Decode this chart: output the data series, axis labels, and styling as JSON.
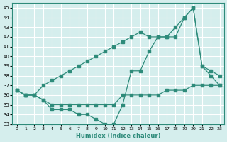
{
  "line1_x": [
    0,
    1,
    2,
    3,
    4,
    5,
    6,
    7,
    8,
    9,
    10,
    11,
    12,
    13,
    14,
    15,
    16,
    17,
    18,
    19,
    20,
    21,
    22,
    23
  ],
  "line1_y": [
    36.5,
    36,
    36,
    37,
    37.5,
    38,
    38.5,
    39,
    39.5,
    40,
    40.5,
    41,
    41.5,
    42,
    42.5,
    42,
    42,
    42,
    43,
    44,
    45,
    39,
    38.5,
    38
  ],
  "line2_x": [
    0,
    1,
    2,
    3,
    4,
    5,
    6,
    7,
    8,
    9,
    10,
    11,
    12,
    13,
    14,
    15,
    16,
    17,
    18,
    19,
    20,
    21,
    22,
    23
  ],
  "line2_y": [
    36.5,
    36,
    36,
    35.5,
    34.5,
    34.5,
    34.5,
    34,
    34,
    33.5,
    33,
    33,
    35,
    38.5,
    38.5,
    40.5,
    42,
    42,
    42,
    44,
    45,
    39,
    38,
    37
  ],
  "line3_x": [
    0,
    1,
    2,
    3,
    4,
    5,
    6,
    7,
    8,
    9,
    10,
    11,
    12,
    13,
    14,
    15,
    16,
    17,
    18,
    19,
    20,
    21,
    22,
    23
  ],
  "line3_y": [
    36.5,
    36,
    36,
    35.5,
    35,
    35,
    35,
    35,
    35,
    35,
    35,
    35,
    36,
    36,
    36,
    36,
    36,
    36.5,
    36.5,
    36.5,
    37,
    37,
    37,
    37
  ],
  "xlim": [
    -0.5,
    23.5
  ],
  "ylim": [
    33,
    45.5
  ],
  "yticks": [
    33,
    34,
    35,
    36,
    37,
    38,
    39,
    40,
    41,
    42,
    43,
    44,
    45
  ],
  "xticks": [
    0,
    1,
    2,
    3,
    4,
    5,
    6,
    7,
    8,
    9,
    10,
    11,
    12,
    13,
    14,
    15,
    16,
    17,
    18,
    19,
    20,
    21,
    22,
    23
  ],
  "xlabel": "Humidex (Indice chaleur)",
  "line_color": "#2e8b7a",
  "bg_color": "#d5eeed",
  "grid_color": "#ffffff"
}
